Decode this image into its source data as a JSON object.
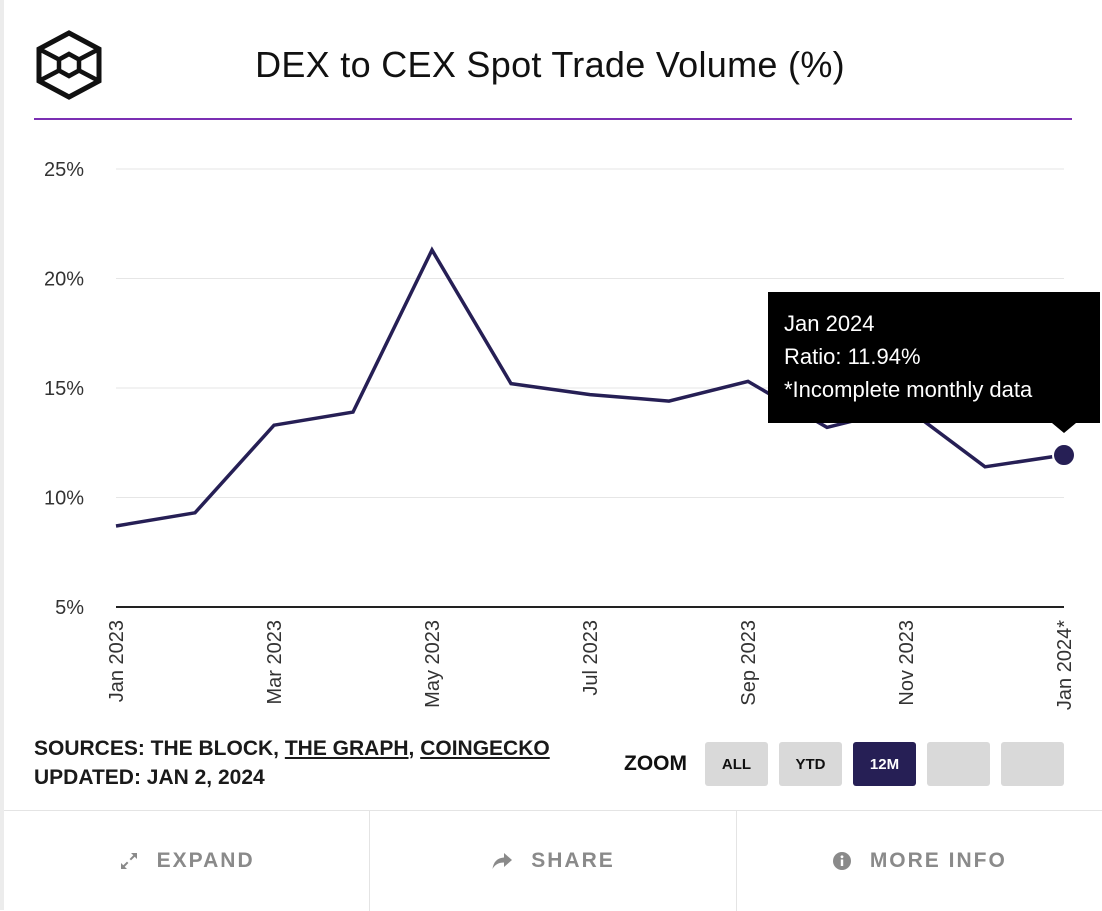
{
  "header": {
    "title": "DEX to CEX Spot Trade Volume (%)",
    "logo_icon": "cube-logo-icon"
  },
  "chart_data": {
    "type": "line",
    "title": "DEX to CEX Spot Trade Volume (%)",
    "xlabel": "",
    "ylabel": "",
    "x": [
      "Jan 2023",
      "Feb 2023",
      "Mar 2023",
      "Apr 2023",
      "May 2023",
      "Jun 2023",
      "Jul 2023",
      "Aug 2023",
      "Sep 2023",
      "Oct 2023",
      "Nov 2023",
      "Dec 2023",
      "Jan 2024"
    ],
    "x_tick_labels": [
      {
        "index": 0,
        "label": "Jan 2023"
      },
      {
        "index": 2,
        "label": "Mar 2023"
      },
      {
        "index": 4,
        "label": "May 2023"
      },
      {
        "index": 6,
        "label": "Jul 2023"
      },
      {
        "index": 8,
        "label": "Sep 2023"
      },
      {
        "index": 10,
        "label": "Nov 2023"
      },
      {
        "index": 12,
        "label": "Jan 2024*"
      }
    ],
    "series": [
      {
        "values": [
          8.7,
          9.3,
          13.3,
          13.9,
          21.3,
          15.2,
          14.7,
          14.4,
          15.3,
          13.2,
          14.1,
          11.4,
          11.94
        ]
      }
    ],
    "ylim": [
      5,
      25
    ],
    "y_ticks": [
      5,
      10,
      15,
      20,
      25
    ],
    "y_tick_labels": [
      "5%",
      "10%",
      "15%",
      "20%",
      "25%"
    ],
    "grid": true,
    "line_color": "#261f55",
    "tooltip": {
      "index": 12,
      "lines": [
        "Jan 2024",
        "Ratio: 11.94%",
        "*Incomplete monthly data"
      ]
    }
  },
  "sources": {
    "prefix": "SOURCES: THE BLOCK, ",
    "link1": "THE GRAPH",
    "separator": ", ",
    "link2": "COINGECKO",
    "updated": "UPDATED: JAN 2, 2024"
  },
  "zoom": {
    "label": "ZOOM",
    "buttons": [
      "ALL",
      "YTD",
      "12M",
      "",
      ""
    ],
    "active": "12M"
  },
  "footer": {
    "expand": "EXPAND",
    "share": "SHARE",
    "more_info": "MORE INFO"
  },
  "colors": {
    "accent_rule": "#7b2fb3",
    "active_button": "#261f55",
    "footer_text": "#8a8a8a"
  }
}
